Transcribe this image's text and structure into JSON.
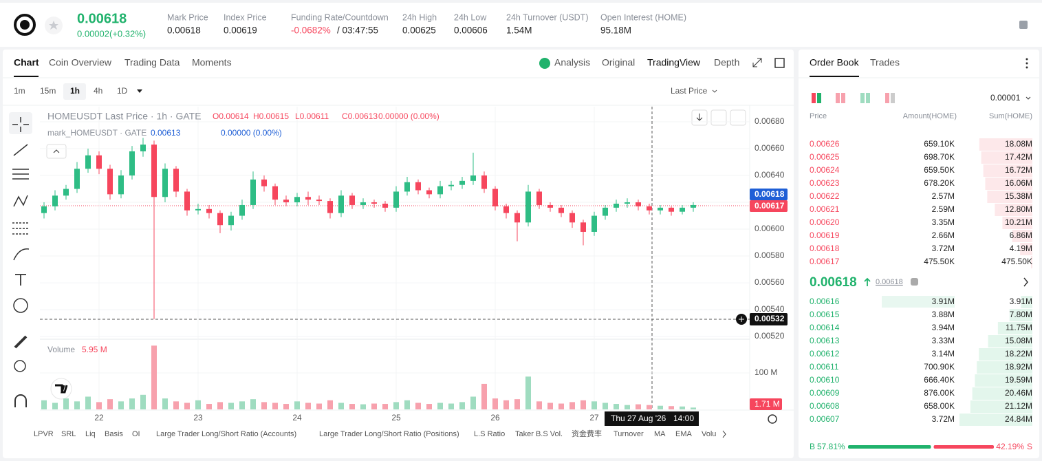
{
  "header": {
    "price": "0.00618",
    "change": "0.00002(+0.32%)",
    "stats": [
      {
        "label": "Mark Price",
        "value": "0.00618"
      },
      {
        "label": "Index Price",
        "value": "0.00619"
      },
      {
        "label": "Funding Rate/Countdown",
        "value": "-0.0682%"
      },
      {
        "label": "24h High",
        "value": "0.00625"
      },
      {
        "label": "24h Low",
        "value": "0.00606"
      },
      {
        "label": "24h Turnover (USDT)",
        "value": "1.54M"
      },
      {
        "label": "Open Interest (HOME)",
        "value": "95.18M"
      }
    ],
    "countdown": "/ 03:47:55"
  },
  "chart_tabs": [
    "Chart",
    "Coin Overview",
    "Trading Data",
    "Moments"
  ],
  "view_tabs": [
    "Analysis",
    "Original",
    "TradingView",
    "Depth"
  ],
  "intervals": [
    "1m",
    "15m",
    "1h",
    "4h",
    "1D"
  ],
  "price_source": "Last Price",
  "chart": {
    "type": "candlestick",
    "title": "HOMEUSDT Last Price · 1h · GATE",
    "ohlc_labels": [
      "O0.00614",
      "H0.00615",
      "L0.00611",
      "C0.00613",
      "0.00000 (0.00%)"
    ],
    "mark_title": "mark_HOMEUSDT · GATE",
    "mark_values": [
      "0.00613",
      "0.00000 (0.00%)"
    ],
    "x_labels": [
      "22",
      "23",
      "24",
      "25",
      "26",
      "27"
    ],
    "crosshair_date": "Thu 27 Aug '26",
    "crosshair_time": "14:00",
    "ylim": [
      0.005185,
      0.006913
    ],
    "yticks": [
      {
        "value": 0.0068,
        "label": "0.00680"
      },
      {
        "value": 0.0066,
        "label": "0.00660"
      },
      {
        "value": 0.0064,
        "label": "0.00640"
      },
      {
        "value": 0.0062,
        "label": "0.00620"
      },
      {
        "value": 0.006,
        "label": "0.00600"
      },
      {
        "value": 0.0058,
        "label": "0.00580"
      },
      {
        "value": 0.0056,
        "label": "0.00560"
      },
      {
        "value": 0.0054,
        "label": "0.00540"
      },
      {
        "value": 0.0052,
        "label": "0.00520"
      }
    ],
    "mark_price_tag": "0.00618",
    "last_price_tag": "0.00617",
    "cursor_price_tag": "0.00532",
    "open": [
      0.00612,
      0.00617,
      0.00625,
      0.0063,
      0.00645,
      0.00655,
      0.00645,
      0.00626,
      0.0064,
      0.00658,
      0.00663,
      0.00624,
      0.00645,
      0.00628,
      0.00614,
      0.00615,
      0.00612,
      0.00603,
      0.0061,
      0.00618,
      0.00637,
      0.00632,
      0.00622,
      0.0062,
      0.00624,
      0.00622,
      0.00621,
      0.00612,
      0.00625,
      0.00618,
      0.0062,
      0.00619,
      0.00616,
      0.00628,
      0.00635,
      0.00629,
      0.00626,
      0.00632,
      0.00633,
      0.00636,
      0.0064,
      0.0063,
      0.00617,
      0.00612,
      0.00605,
      0.00628,
      0.00618,
      0.00616,
      0.00612,
      0.00605,
      0.00598,
      0.0061,
      0.00616,
      0.00619,
      0.0062,
      0.00617,
      0.00614,
      0.00616,
      0.00613,
      0.00616
    ],
    "high": [
      0.0062,
      0.00629,
      0.00633,
      0.0065,
      0.0066,
      0.00658,
      0.00648,
      0.00644,
      0.00662,
      0.00668,
      0.00666,
      0.00649,
      0.00647,
      0.0063,
      0.00619,
      0.00618,
      0.00614,
      0.00613,
      0.00622,
      0.00643,
      0.0064,
      0.00634,
      0.00625,
      0.00627,
      0.00628,
      0.00625,
      0.00623,
      0.00629,
      0.00627,
      0.00623,
      0.00622,
      0.00621,
      0.00632,
      0.00639,
      0.00637,
      0.00631,
      0.00636,
      0.00636,
      0.00639,
      0.00657,
      0.00643,
      0.00632,
      0.00619,
      0.00614,
      0.00633,
      0.0063,
      0.0062,
      0.00618,
      0.00614,
      0.00607,
      0.00613,
      0.00618,
      0.00622,
      0.00623,
      0.00622,
      0.00619,
      0.00618,
      0.00617,
      0.00618,
      0.0062
    ],
    "low": [
      0.00608,
      0.00614,
      0.00622,
      0.00627,
      0.00642,
      0.00641,
      0.00622,
      0.00623,
      0.00637,
      0.00654,
      0.00533,
      0.0062,
      0.00624,
      0.0061,
      0.00611,
      0.00608,
      0.00597,
      0.00599,
      0.00607,
      0.00615,
      0.00628,
      0.00618,
      0.00617,
      0.00617,
      0.00618,
      0.00618,
      0.00608,
      0.00609,
      0.00615,
      0.00615,
      0.00616,
      0.00613,
      0.00613,
      0.00625,
      0.00626,
      0.00623,
      0.00623,
      0.00629,
      0.0063,
      0.00633,
      0.00627,
      0.00614,
      0.00608,
      0.00591,
      0.00602,
      0.00615,
      0.00613,
      0.00609,
      0.00601,
      0.00588,
      0.00595,
      0.00607,
      0.00613,
      0.00616,
      0.00614,
      0.00611,
      0.00611,
      0.0061,
      0.00611,
      0.00613
    ],
    "close": [
      0.00617,
      0.00625,
      0.0063,
      0.00645,
      0.00655,
      0.00645,
      0.00626,
      0.0064,
      0.00658,
      0.00663,
      0.00624,
      0.00645,
      0.00628,
      0.00614,
      0.00615,
      0.00612,
      0.00603,
      0.0061,
      0.00618,
      0.00637,
      0.00632,
      0.00622,
      0.0062,
      0.00624,
      0.00622,
      0.00621,
      0.00612,
      0.00625,
      0.00618,
      0.0062,
      0.00619,
      0.00616,
      0.00628,
      0.00635,
      0.00629,
      0.00626,
      0.00632,
      0.00633,
      0.00636,
      0.0064,
      0.0063,
      0.00617,
      0.00612,
      0.00605,
      0.00628,
      0.00618,
      0.00616,
      0.00612,
      0.00605,
      0.00598,
      0.0061,
      0.00616,
      0.00619,
      0.0062,
      0.00617,
      0.00614,
      0.00616,
      0.00613,
      0.00616,
      0.00618
    ],
    "volume": {
      "title": "Volume",
      "value_label": "5.95 M",
      "last_label": "1.71 M",
      "ylim": [
        0,
        185000000
      ],
      "yticks": [
        {
          "value": 100000000,
          "label": "100 M"
        }
      ],
      "values": [
        25000000,
        18000000,
        30000000,
        22000000,
        35000000,
        20000000,
        28000000,
        22000000,
        30000000,
        40000000,
        175000000,
        30000000,
        22000000,
        18000000,
        25000000,
        15000000,
        20000000,
        18000000,
        22000000,
        28000000,
        20000000,
        18000000,
        15000000,
        22000000,
        18000000,
        16000000,
        25000000,
        18000000,
        15000000,
        14000000,
        16000000,
        15000000,
        20000000,
        25000000,
        18000000,
        15000000,
        18000000,
        16000000,
        20000000,
        35000000,
        70000000,
        30000000,
        25000000,
        28000000,
        90000000,
        22000000,
        18000000,
        16000000,
        20000000,
        25000000,
        22000000,
        18000000,
        15000000,
        12000000,
        14000000,
        12000000,
        10000000,
        9000000,
        8000000,
        5000000
      ]
    }
  },
  "indicators": [
    "LPVR",
    "SRL",
    "Liq",
    "Basis",
    "OI",
    "Large Trader Long/Short Ratio (Accounts)",
    "Large Trader Long/Short Ratio (Positions)",
    "L.S Ratio",
    "Taker B.S Vol.",
    "资金费率",
    "Turnover",
    "MA",
    "EMA",
    "Volu"
  ],
  "order_book": {
    "tabs": [
      "Order Book",
      "Trades"
    ],
    "precision": "0.00001",
    "columns": [
      "Price",
      "Amount(HOME)",
      "Sum(HOME)"
    ],
    "asks": [
      {
        "price": "0.00626",
        "amount": "659.10K",
        "sum": {
          "value": 18080000,
          "label": "18.08M"
        }
      },
      {
        "price": "0.00625",
        "amount": "698.70K",
        "sum": {
          "value": 17420000,
          "label": "17.42M"
        }
      },
      {
        "price": "0.00624",
        "amount": "659.50K",
        "sum": {
          "value": 16720000,
          "label": "16.72M"
        }
      },
      {
        "price": "0.00623",
        "amount": "678.20K",
        "sum": {
          "value": 16060000,
          "label": "16.06M"
        }
      },
      {
        "price": "0.00622",
        "amount": "2.57M",
        "sum": {
          "value": 15380000,
          "label": "15.38M"
        }
      },
      {
        "price": "0.00621",
        "amount": "2.59M",
        "sum": {
          "value": 12800000,
          "label": "12.80M"
        }
      },
      {
        "price": "0.00620",
        "amount": "3.35M",
        "sum": {
          "value": 10210000,
          "label": "10.21M"
        }
      },
      {
        "price": "0.00619",
        "amount": "2.66M",
        "sum": {
          "value": 6860000,
          "label": "6.86M"
        }
      },
      {
        "price": "0.00618",
        "amount": "3.72M",
        "sum": {
          "value": 4190000,
          "label": "4.19M"
        }
      },
      {
        "price": "0.00617",
        "amount": "475.50K",
        "sum": {
          "value": 475500,
          "label": "475.50K"
        }
      }
    ],
    "last_price": "0.00618",
    "mark_price": "0.00618",
    "bids": [
      {
        "price": "0.00616",
        "amount": "3.91M",
        "sum": {
          "value": 3910000,
          "label": "3.91M"
        }
      },
      {
        "price": "0.00615",
        "amount": "3.88M",
        "sum": {
          "value": 7800000,
          "label": "7.80M"
        }
      },
      {
        "price": "0.00614",
        "amount": "3.94M",
        "sum": {
          "value": 11750000,
          "label": "11.75M"
        }
      },
      {
        "price": "0.00613",
        "amount": "3.33M",
        "sum": {
          "value": 15080000,
          "label": "15.08M"
        }
      },
      {
        "price": "0.00612",
        "amount": "3.14M",
        "sum": {
          "value": 18220000,
          "label": "18.22M"
        }
      },
      {
        "price": "0.00611",
        "amount": "700.90K",
        "sum": {
          "value": 18920000,
          "label": "18.92M"
        }
      },
      {
        "price": "0.00610",
        "amount": "666.40K",
        "sum": {
          "value": 19590000,
          "label": "19.59M"
        }
      },
      {
        "price": "0.00609",
        "amount": "876.00K",
        "sum": {
          "value": 20460000,
          "label": "20.46M"
        }
      },
      {
        "price": "0.00608",
        "amount": "658.00K",
        "sum": {
          "value": 21120000,
          "label": "21.12M"
        }
      },
      {
        "price": "0.00607",
        "amount": "3.72M",
        "sum": {
          "value": 24840000,
          "label": "24.84M"
        }
      }
    ],
    "buy_label": "B",
    "buy_ratio": {
      "value": 57.81,
      "label": "57.81%"
    },
    "sell_ratio": {
      "value": 42.19,
      "label": "42.19%"
    },
    "sell_label": "S"
  }
}
